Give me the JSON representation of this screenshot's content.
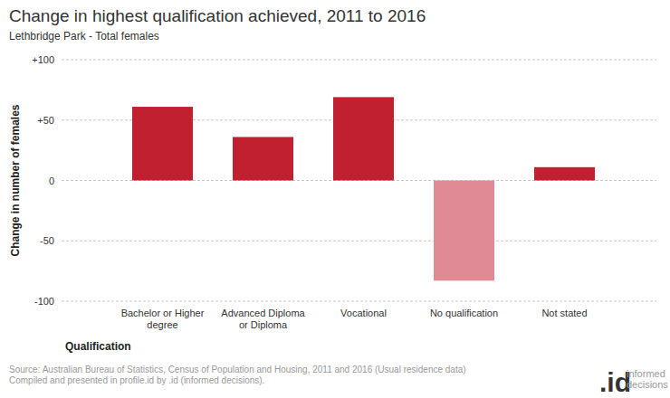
{
  "chart_data": {
    "type": "bar",
    "title": "Change in highest qualification achieved, 2011 to 2016",
    "subtitle": "Lethbridge Park - Total females",
    "x_label": "Qualification",
    "y_label": "Change in number of females",
    "categories": [
      "Bachelor or Higher degree",
      "Advanced Diploma or Diploma",
      "Vocational",
      "No qualification",
      "Not stated"
    ],
    "values": [
      61,
      36,
      69,
      -83,
      11
    ],
    "colors": [
      "#c0202f",
      "#c0202f",
      "#c0202f",
      "#e08a96",
      "#c0202f"
    ],
    "ylim": [
      -100,
      100
    ],
    "yticks": [
      {
        "value": 100,
        "label": "+100"
      },
      {
        "value": 50,
        "label": "+50"
      },
      0,
      -50,
      -100
    ],
    "grid": true,
    "source": [
      "Source: Australian Bureau of Statistics, Census of Population and Housing, 2011 and 2016 (Usual residence data)",
      "Compiled and presented in profile.id by .id (informed decisions)."
    ],
    "logo": ".id",
    "logo_text": [
      "informed",
      "decisions"
    ]
  }
}
